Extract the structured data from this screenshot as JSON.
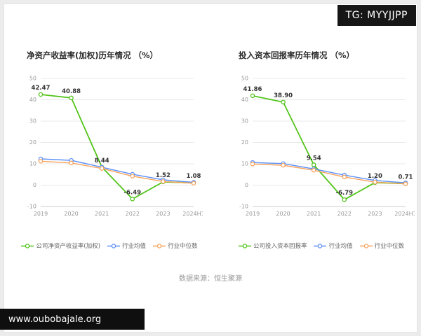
{
  "watermarks": {
    "tg": "TG: MYYJJPP",
    "url": "www.oubobajale.org"
  },
  "source": "数据来源：恒生聚源",
  "colors": {
    "company": "#52c41a",
    "industry_avg": "#5b8ff9",
    "industry_median": "#f7a35c",
    "grid": "#e9e9e9",
    "axis": "#cccccc",
    "tick_text": "#999999",
    "label_text": "#333333"
  },
  "chart_data": [
    {
      "type": "line",
      "title": "净资产收益率(加权)历年情况 （%）",
      "categories": [
        "2019",
        "2020",
        "2021",
        "2022",
        "2023",
        "2024H1"
      ],
      "ylim": [
        -10,
        50
      ],
      "yticks": [
        50,
        40,
        30,
        20,
        10,
        0,
        -10
      ],
      "grid": true,
      "legend_position": "bottom",
      "series": [
        {
          "name": "公司净资产收益率(加权)",
          "color": "#52c41a",
          "values": [
            42.47,
            40.88,
            8.44,
            -6.49,
            1.52,
            1.08
          ],
          "labels": [
            "42.47",
            "40.88",
            "8.44",
            "-6.49",
            "1.52",
            "1.08"
          ]
        },
        {
          "name": "行业均值",
          "color": "#5b8ff9",
          "values": [
            12.3,
            11.6,
            8.4,
            5.1,
            2.5,
            1.3
          ]
        },
        {
          "name": "行业中位数",
          "color": "#f7a35c",
          "values": [
            11.2,
            10.4,
            7.8,
            4.2,
            1.7,
            0.9
          ]
        }
      ]
    },
    {
      "type": "line",
      "title": "投入资本回报率历年情况 （%）",
      "categories": [
        "2019",
        "2020",
        "2021",
        "2022",
        "2023",
        "2024H1"
      ],
      "ylim": [
        -10,
        50
      ],
      "yticks": [
        50,
        40,
        30,
        20,
        10,
        0,
        -10
      ],
      "grid": true,
      "legend_position": "bottom",
      "series": [
        {
          "name": "公司投入资本回报率",
          "color": "#52c41a",
          "values": [
            41.86,
            38.9,
            9.54,
            -6.79,
            1.2,
            0.71
          ],
          "labels": [
            "41.86",
            "38.90",
            "9.54",
            "-6.79",
            "1.20",
            "0.71"
          ]
        },
        {
          "name": "行业均值",
          "color": "#5b8ff9",
          "values": [
            10.6,
            10.1,
            7.6,
            4.7,
            2.2,
            1.1
          ]
        },
        {
          "name": "行业中位数",
          "color": "#f7a35c",
          "values": [
            9.9,
            9.3,
            7.0,
            3.8,
            1.4,
            0.6
          ]
        }
      ]
    }
  ]
}
